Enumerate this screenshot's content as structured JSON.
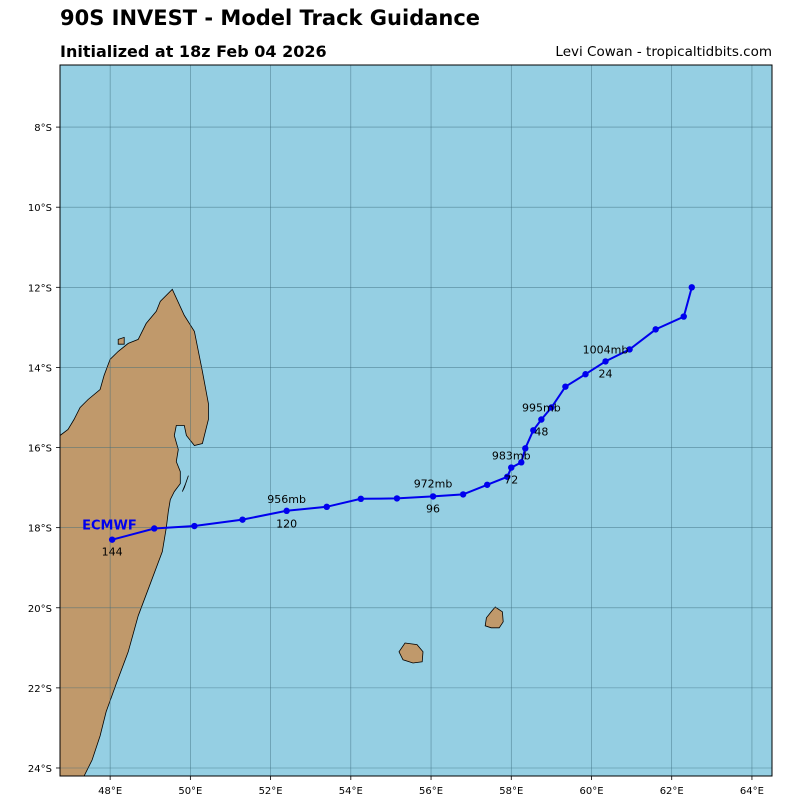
{
  "header": {
    "title": "90S INVEST - Model Track Guidance",
    "subtitle": "Initialized at 18z Feb 04 2026",
    "credit": "Levi Cowan - tropicaltidbits.com"
  },
  "colors": {
    "ocean": "#95cfe3",
    "land": "#c0996b",
    "track": "#0000ee",
    "grid": "#3a6a7a"
  },
  "chart_data": {
    "type": "map-track",
    "lon_range": [
      46.75,
      64.5
    ],
    "lat_range": [
      -24.2,
      -6.45
    ],
    "lon_ticks": [
      48,
      50,
      52,
      54,
      56,
      58,
      60,
      62,
      64
    ],
    "lon_tick_labels": [
      "48°E",
      "50°E",
      "52°E",
      "54°E",
      "56°E",
      "58°E",
      "60°E",
      "62°E",
      "64°E"
    ],
    "lat_ticks": [
      -8,
      -10,
      -12,
      -14,
      -16,
      -18,
      -20,
      -22,
      -24
    ],
    "lat_tick_labels": [
      "8°S",
      "10°S",
      "12°S",
      "14°S",
      "16°S",
      "18°S",
      "20°S",
      "22°S",
      "24°S"
    ],
    "model": "ECMWF",
    "track": [
      {
        "lon": 62.5,
        "lat": -12.0
      },
      {
        "lon": 62.3,
        "lat": -12.73
      },
      {
        "lon": 61.6,
        "lat": -13.05
      },
      {
        "lon": 60.95,
        "lat": -13.55
      },
      {
        "lon": 60.35,
        "lat": -13.85
      },
      {
        "lon": 59.85,
        "lat": -14.17
      },
      {
        "lon": 59.35,
        "lat": -14.48
      },
      {
        "lon": 59.0,
        "lat": -15.0
      },
      {
        "lon": 58.75,
        "lat": -15.3
      },
      {
        "lon": 58.55,
        "lat": -15.57
      },
      {
        "lon": 58.35,
        "lat": -16.02
      },
      {
        "lon": 58.25,
        "lat": -16.37
      },
      {
        "lon": 58.0,
        "lat": -16.5
      },
      {
        "lon": 57.9,
        "lat": -16.73
      },
      {
        "lon": 57.4,
        "lat": -16.93
      },
      {
        "lon": 56.8,
        "lat": -17.17
      },
      {
        "lon": 56.05,
        "lat": -17.22
      },
      {
        "lon": 55.15,
        "lat": -17.27
      },
      {
        "lon": 54.25,
        "lat": -17.28
      },
      {
        "lon": 53.4,
        "lat": -17.48
      },
      {
        "lon": 52.4,
        "lat": -17.58
      },
      {
        "lon": 51.3,
        "lat": -17.8
      },
      {
        "lon": 50.1,
        "lat": -17.96
      },
      {
        "lon": 49.1,
        "lat": -18.02
      },
      {
        "lon": 48.05,
        "lat": -18.3
      }
    ],
    "labels": [
      {
        "text": "1004mb",
        "lon": 60.35,
        "lat": -13.55
      },
      {
        "text": "24",
        "lon": 60.35,
        "lat": -14.15
      },
      {
        "text": "995mb",
        "lon": 58.75,
        "lat": -15.0
      },
      {
        "text": "48",
        "lon": 58.75,
        "lat": -15.6
      },
      {
        "text": "983mb",
        "lon": 58.0,
        "lat": -16.2
      },
      {
        "text": "72",
        "lon": 58.0,
        "lat": -16.8
      },
      {
        "text": "972mb",
        "lon": 56.05,
        "lat": -16.9
      },
      {
        "text": "96",
        "lon": 56.05,
        "lat": -17.52
      },
      {
        "text": "956mb",
        "lon": 52.4,
        "lat": -17.28
      },
      {
        "text": "120",
        "lon": 52.4,
        "lat": -17.9
      },
      {
        "text": "144",
        "lon": 48.05,
        "lat": -18.6
      }
    ],
    "islands": [
      {
        "name": "Madagascar",
        "outline": [
          [
            46.75,
            -17.2
          ],
          [
            47.0,
            -17.15
          ],
          [
            47.2,
            -17.1
          ],
          [
            47.3,
            -16.85
          ],
          [
            47.5,
            -16.75
          ],
          [
            47.75,
            -16.65
          ],
          [
            47.85,
            -16.5
          ],
          [
            47.95,
            -16.35
          ],
          [
            48.05,
            -16.2
          ],
          [
            48.2,
            -15.95
          ],
          [
            48.3,
            -15.65
          ],
          [
            48.45,
            -15.45
          ],
          [
            48.6,
            -15.25
          ],
          [
            48.8,
            -14.85
          ],
          [
            48.9,
            -14.55
          ],
          [
            48.75,
            -14.35
          ],
          [
            49.0,
            -14.2
          ],
          [
            49.2,
            -14.0
          ],
          [
            49.5,
            -13.55
          ],
          [
            49.75,
            -13.05
          ],
          [
            49.85,
            -12.7
          ],
          [
            49.8,
            -12.35
          ],
          [
            49.55,
            -12.05
          ],
          [
            49.25,
            -12.35
          ],
          [
            49.15,
            -12.6
          ],
          [
            48.9,
            -12.9
          ],
          [
            48.7,
            -13.3
          ],
          [
            48.45,
            -13.4
          ],
          [
            48.2,
            -13.6
          ],
          [
            48.0,
            -13.8
          ],
          [
            47.85,
            -14.2
          ],
          [
            47.75,
            -14.55
          ],
          [
            47.45,
            -14.8
          ],
          [
            47.25,
            -15.0
          ],
          [
            47.1,
            -15.3
          ],
          [
            46.9,
            -15.5
          ],
          [
            46.75,
            -15.7
          ]
        ]
      },
      {
        "name": "Mauritius",
        "outline": [
          [
            57.6,
            -19.98
          ],
          [
            57.78,
            -20.1
          ],
          [
            57.8,
            -20.35
          ],
          [
            57.7,
            -20.5
          ],
          [
            57.5,
            -20.5
          ],
          [
            57.35,
            -20.45
          ],
          [
            57.38,
            -20.25
          ],
          [
            57.5,
            -20.1
          ]
        ]
      },
      {
        "name": "Reunion",
        "outline": [
          [
            55.35,
            -20.88
          ],
          [
            55.65,
            -20.92
          ],
          [
            55.8,
            -21.1
          ],
          [
            55.78,
            -21.35
          ],
          [
            55.55,
            -21.38
          ],
          [
            55.3,
            -21.3
          ],
          [
            55.2,
            -21.1
          ]
        ]
      }
    ]
  }
}
